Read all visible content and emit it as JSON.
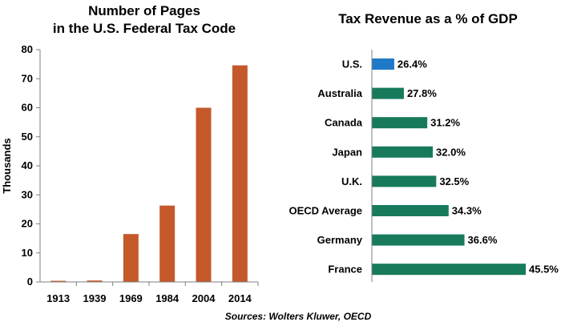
{
  "source": "Sources: Wolters Kluwer, OECD",
  "colors": {
    "orange_bar": "#C5582A",
    "us_bar": "#1F78C8",
    "green_bar": "#177A5C",
    "axis": "#7F7F7F"
  },
  "chart_data": [
    {
      "type": "bar",
      "orientation": "vertical",
      "title": [
        "Number of Pages",
        "in the U.S. Federal Tax Code"
      ],
      "xlabel": "",
      "ylabel": "Thousands",
      "categories": [
        "1913",
        "1939",
        "1969",
        "1984",
        "2004",
        "2014"
      ],
      "values": [
        0.4,
        0.5,
        16.5,
        26.3,
        60.0,
        74.6
      ],
      "ylim": [
        0,
        80
      ],
      "yticks": [
        0,
        10,
        20,
        30,
        40,
        50,
        60,
        70,
        80
      ],
      "grid": false,
      "legend": "none"
    },
    {
      "type": "bar",
      "orientation": "horizontal",
      "title": "Tax Revenue as a % of GDP",
      "categories": [
        "U.S.",
        "Australia",
        "Canada",
        "Japan",
        "U.K.",
        "OECD Average",
        "Germany",
        "France"
      ],
      "values": [
        26.4,
        27.8,
        31.2,
        32.0,
        32.5,
        34.3,
        36.6,
        45.5
      ],
      "value_labels": [
        "26.4%",
        "27.8%",
        "31.2%",
        "32.0%",
        "32.5%",
        "34.3%",
        "36.6%",
        "45.5%"
      ],
      "highlight": "U.S.",
      "grid": false,
      "legend": "none"
    }
  ]
}
